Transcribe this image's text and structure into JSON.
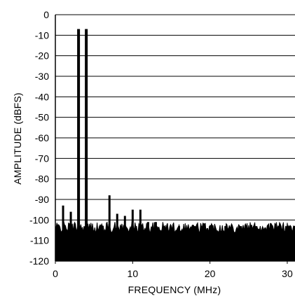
{
  "chart_data": {
    "type": "line",
    "title": "",
    "xlabel": "FREQUENCY (MHz)",
    "ylabel": "AMPLITUDE (dBFS)",
    "xlim": [
      0,
      31
    ],
    "ylim": [
      -120,
      0
    ],
    "x_ticks": [
      0,
      10,
      20,
      30
    ],
    "x_tick_labels": [
      "0",
      "10",
      "20",
      "30"
    ],
    "y_ticks": [
      0,
      -10,
      -20,
      -30,
      -40,
      -50,
      -60,
      -70,
      -80,
      -90,
      -100,
      -110,
      -120
    ],
    "y_tick_labels": [
      "0",
      "-10",
      "-20",
      "-30",
      "-40",
      "-50",
      "-60",
      "-70",
      "-80",
      "-90",
      "-100",
      "-110",
      "-120"
    ],
    "grid": {
      "horizontal": true,
      "vertical": false
    },
    "legend": "none",
    "colors": {
      "trace": "#000000",
      "grid": "#000000",
      "background": "#ffffff"
    },
    "series": [
      {
        "x": [
          1,
          2,
          3,
          4,
          7,
          8,
          9,
          10,
          11,
          12,
          13,
          14,
          16,
          18,
          20,
          22,
          24,
          26,
          28,
          30
        ],
        "values": [
          -93,
          -96,
          -7,
          -7,
          -88,
          -97,
          -98,
          -95,
          -95,
          -101,
          -101,
          -103,
          -103,
          -103,
          -103,
          -103,
          -103,
          -103,
          -103,
          -103
        ]
      }
    ],
    "noise_floor": {
      "x_range": [
        0,
        31
      ],
      "values_range": [
        -109,
        -101
      ]
    }
  }
}
